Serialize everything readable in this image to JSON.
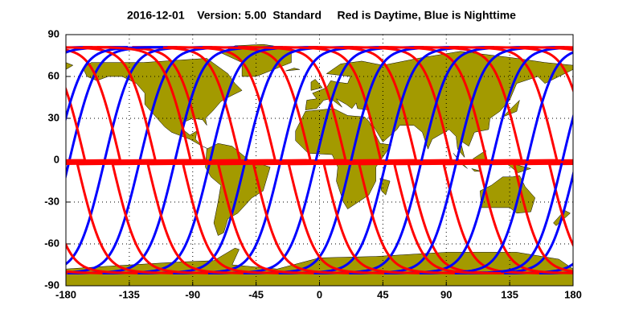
{
  "chart_data": {
    "type": "map",
    "title": "2016-12-01    Version: 5.00  Standard     Red is Daytime, Blue is Nighttime",
    "xlim": [
      -180,
      180
    ],
    "ylim": [
      -90,
      90
    ],
    "xticks": [
      -180,
      -135,
      -90,
      -45,
      0,
      45,
      90,
      135,
      180
    ],
    "yticks": [
      -90,
      -60,
      -30,
      0,
      30,
      60,
      90
    ],
    "grid": true,
    "land_color": "#a39a00",
    "day_color": "#ff0000",
    "night_color": "#0000ff"
  }
}
